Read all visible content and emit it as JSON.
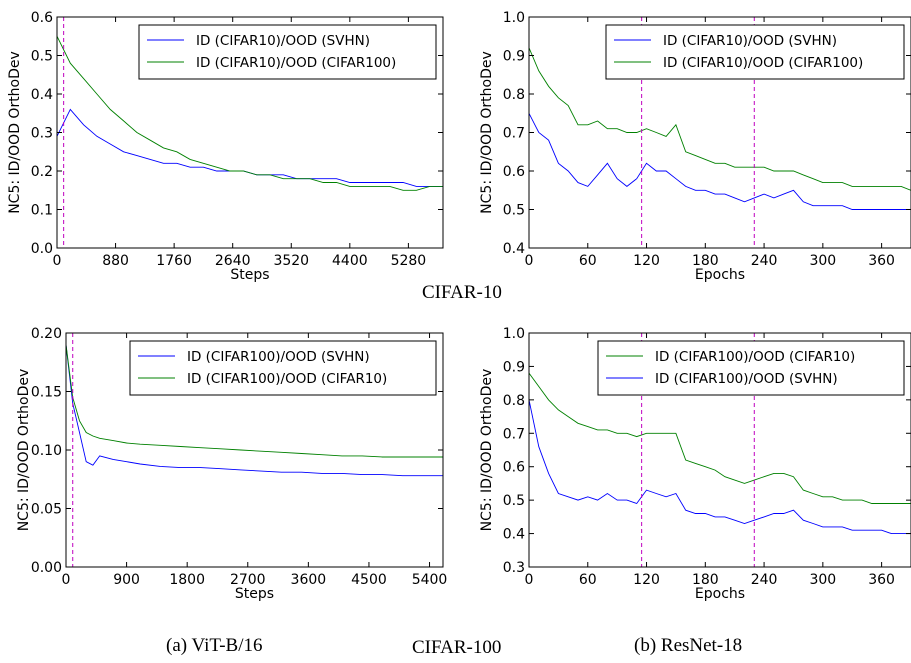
{
  "captions": {
    "row1": "CIFAR-10",
    "row2": "CIFAR-100",
    "a": "(a) ViT-B/16",
    "b": "(b) ResNet-18"
  },
  "chart_data": [
    {
      "type": "line",
      "ylabel": "NC5: ID/OOD OrthoDev",
      "xlabel": "Steps",
      "xlim": [
        0,
        5800
      ],
      "ylim": [
        0.0,
        0.6
      ],
      "xticks": [
        0,
        880,
        1760,
        2640,
        3520,
        4400,
        5280
      ],
      "yticks": [
        0.0,
        0.1,
        0.2,
        0.3,
        0.4,
        0.5,
        0.6
      ],
      "ytick_labels": [
        "0.0",
        "0.1",
        "0.2",
        "0.3",
        "0.4",
        "0.5",
        "0.6"
      ],
      "vlines": [
        100
      ],
      "legend_loc": "top-right",
      "series": [
        {
          "name": "ID (CIFAR10)/OOD (SVHN)",
          "color": "#0000ff",
          "x": [
            0,
            200,
            400,
            600,
            800,
            1000,
            1200,
            1400,
            1600,
            1800,
            2000,
            2200,
            2400,
            2600,
            2800,
            3000,
            3200,
            3400,
            3600,
            3800,
            4000,
            4200,
            4400,
            4600,
            4800,
            5000,
            5200,
            5400,
            5600,
            5800
          ],
          "y": [
            0.29,
            0.36,
            0.32,
            0.29,
            0.27,
            0.25,
            0.24,
            0.23,
            0.22,
            0.22,
            0.21,
            0.21,
            0.2,
            0.2,
            0.2,
            0.19,
            0.19,
            0.19,
            0.18,
            0.18,
            0.18,
            0.18,
            0.17,
            0.17,
            0.17,
            0.17,
            0.17,
            0.16,
            0.16,
            0.16
          ]
        },
        {
          "name": "ID (CIFAR10)/OOD (CIFAR100)",
          "color": "#008000",
          "x": [
            0,
            200,
            400,
            600,
            800,
            1000,
            1200,
            1400,
            1600,
            1800,
            2000,
            2200,
            2400,
            2600,
            2800,
            3000,
            3200,
            3400,
            3600,
            3800,
            4000,
            4200,
            4400,
            4600,
            4800,
            5000,
            5200,
            5400,
            5600,
            5800
          ],
          "y": [
            0.55,
            0.48,
            0.44,
            0.4,
            0.36,
            0.33,
            0.3,
            0.28,
            0.26,
            0.25,
            0.23,
            0.22,
            0.21,
            0.2,
            0.2,
            0.19,
            0.19,
            0.18,
            0.18,
            0.18,
            0.17,
            0.17,
            0.16,
            0.16,
            0.16,
            0.16,
            0.15,
            0.15,
            0.16,
            0.16
          ]
        }
      ]
    },
    {
      "type": "line",
      "ylabel": "NC5: ID/OOD OrthoDev",
      "xlabel": "Epochs",
      "xlim": [
        0,
        390
      ],
      "ylim": [
        0.4,
        1.0
      ],
      "xticks": [
        0,
        60,
        120,
        180,
        240,
        300,
        360
      ],
      "yticks": [
        0.4,
        0.5,
        0.6,
        0.7,
        0.8,
        0.9,
        1.0
      ],
      "ytick_labels": [
        "0.4",
        "0.5",
        "0.6",
        "0.7",
        "0.8",
        "0.9",
        "1.0"
      ],
      "vlines": [
        115,
        230
      ],
      "legend_loc": "top-right",
      "series": [
        {
          "name": "ID (CIFAR10)/OOD (SVHN)",
          "color": "#0000ff",
          "x": [
            0,
            10,
            20,
            30,
            40,
            50,
            60,
            70,
            80,
            90,
            100,
            110,
            120,
            130,
            140,
            150,
            160,
            170,
            180,
            190,
            200,
            210,
            220,
            230,
            240,
            250,
            260,
            270,
            280,
            290,
            300,
            310,
            320,
            330,
            340,
            350,
            360,
            370,
            380,
            390
          ],
          "y": [
            0.75,
            0.7,
            0.68,
            0.62,
            0.6,
            0.57,
            0.56,
            0.59,
            0.62,
            0.58,
            0.56,
            0.58,
            0.62,
            0.6,
            0.6,
            0.58,
            0.56,
            0.55,
            0.55,
            0.54,
            0.54,
            0.53,
            0.52,
            0.53,
            0.54,
            0.53,
            0.54,
            0.55,
            0.52,
            0.51,
            0.51,
            0.51,
            0.51,
            0.5,
            0.5,
            0.5,
            0.5,
            0.5,
            0.5,
            0.5
          ]
        },
        {
          "name": "ID (CIFAR10)/OOD (CIFAR100)",
          "color": "#008000",
          "x": [
            0,
            10,
            20,
            30,
            40,
            50,
            60,
            70,
            80,
            90,
            100,
            110,
            120,
            130,
            140,
            150,
            160,
            170,
            180,
            190,
            200,
            210,
            220,
            230,
            240,
            250,
            260,
            270,
            280,
            290,
            300,
            310,
            320,
            330,
            340,
            350,
            360,
            370,
            380,
            390
          ],
          "y": [
            0.92,
            0.86,
            0.82,
            0.79,
            0.77,
            0.72,
            0.72,
            0.73,
            0.71,
            0.71,
            0.7,
            0.7,
            0.71,
            0.7,
            0.69,
            0.72,
            0.65,
            0.64,
            0.63,
            0.62,
            0.62,
            0.61,
            0.61,
            0.61,
            0.61,
            0.6,
            0.6,
            0.6,
            0.59,
            0.58,
            0.57,
            0.57,
            0.57,
            0.56,
            0.56,
            0.56,
            0.56,
            0.56,
            0.56,
            0.55
          ]
        }
      ]
    },
    {
      "type": "line",
      "ylabel": "NC5: ID/OOD OrthoDev",
      "xlabel": "Steps",
      "xlim": [
        0,
        5600
      ],
      "ylim": [
        0.0,
        0.2
      ],
      "xticks": [
        0,
        900,
        1800,
        2700,
        3600,
        4500,
        5400
      ],
      "yticks": [
        0.0,
        0.05,
        0.1,
        0.15,
        0.2
      ],
      "ytick_labels": [
        "0.00",
        "0.05",
        "0.10",
        "0.15",
        "0.20"
      ],
      "vlines": [
        100
      ],
      "legend_loc": "top-right",
      "series": [
        {
          "name": "ID (CIFAR100)/OOD (SVHN)",
          "color": "#0000ff",
          "x": [
            0,
            100,
            200,
            300,
            400,
            500,
            700,
            900,
            1100,
            1400,
            1700,
            2000,
            2300,
            2600,
            2900,
            3200,
            3500,
            3800,
            4100,
            4400,
            4700,
            5000,
            5300,
            5600
          ],
          "y": [
            0.19,
            0.14,
            0.115,
            0.09,
            0.087,
            0.095,
            0.092,
            0.09,
            0.088,
            0.086,
            0.085,
            0.085,
            0.084,
            0.083,
            0.082,
            0.081,
            0.081,
            0.08,
            0.08,
            0.079,
            0.079,
            0.078,
            0.078,
            0.078
          ]
        },
        {
          "name": "ID (CIFAR100)/OOD (CIFAR10)",
          "color": "#008000",
          "x": [
            0,
            100,
            200,
            300,
            400,
            500,
            700,
            900,
            1100,
            1400,
            1700,
            2000,
            2300,
            2600,
            2900,
            3200,
            3500,
            3800,
            4100,
            4400,
            4700,
            5000,
            5300,
            5600
          ],
          "y": [
            0.19,
            0.145,
            0.125,
            0.115,
            0.112,
            0.11,
            0.108,
            0.106,
            0.105,
            0.104,
            0.103,
            0.102,
            0.101,
            0.1,
            0.099,
            0.098,
            0.097,
            0.096,
            0.095,
            0.095,
            0.094,
            0.094,
            0.094,
            0.094
          ]
        }
      ]
    },
    {
      "type": "line",
      "ylabel": "NC5: ID/OOD OrthoDev",
      "xlabel": "Epochs",
      "xlim": [
        0,
        390
      ],
      "ylim": [
        0.3,
        1.0
      ],
      "xticks": [
        0,
        60,
        120,
        180,
        240,
        300,
        360
      ],
      "yticks": [
        0.3,
        0.4,
        0.5,
        0.6,
        0.7,
        0.8,
        0.9,
        1.0
      ],
      "ytick_labels": [
        "0.3",
        "0.4",
        "0.5",
        "0.6",
        "0.7",
        "0.8",
        "0.9",
        "1.0"
      ],
      "vlines": [
        115,
        230
      ],
      "legend_loc": "top-right",
      "series": [
        {
          "name": "ID (CIFAR100)/OOD (CIFAR10)",
          "color": "#008000",
          "x": [
            0,
            10,
            20,
            30,
            40,
            50,
            60,
            70,
            80,
            90,
            100,
            110,
            120,
            130,
            140,
            150,
            160,
            170,
            180,
            190,
            200,
            210,
            220,
            230,
            240,
            250,
            260,
            270,
            280,
            290,
            300,
            310,
            320,
            330,
            340,
            350,
            360,
            370,
            380,
            390
          ],
          "y": [
            0.88,
            0.84,
            0.8,
            0.77,
            0.75,
            0.73,
            0.72,
            0.71,
            0.71,
            0.7,
            0.7,
            0.69,
            0.7,
            0.7,
            0.7,
            0.7,
            0.62,
            0.61,
            0.6,
            0.59,
            0.57,
            0.56,
            0.55,
            0.56,
            0.57,
            0.58,
            0.58,
            0.57,
            0.53,
            0.52,
            0.51,
            0.51,
            0.5,
            0.5,
            0.5,
            0.49,
            0.49,
            0.49,
            0.49,
            0.49
          ]
        },
        {
          "name": "ID (CIFAR100)/OOD (SVHN)",
          "color": "#0000ff",
          "x": [
            0,
            10,
            20,
            30,
            40,
            50,
            60,
            70,
            80,
            90,
            100,
            110,
            120,
            130,
            140,
            150,
            160,
            170,
            180,
            190,
            200,
            210,
            220,
            230,
            240,
            250,
            260,
            270,
            280,
            290,
            300,
            310,
            320,
            330,
            340,
            350,
            360,
            370,
            380,
            390
          ],
          "y": [
            0.8,
            0.66,
            0.58,
            0.52,
            0.51,
            0.5,
            0.51,
            0.5,
            0.52,
            0.5,
            0.5,
            0.49,
            0.53,
            0.52,
            0.51,
            0.52,
            0.47,
            0.46,
            0.46,
            0.45,
            0.45,
            0.44,
            0.43,
            0.44,
            0.45,
            0.46,
            0.46,
            0.47,
            0.44,
            0.43,
            0.42,
            0.42,
            0.42,
            0.41,
            0.41,
            0.41,
            0.41,
            0.4,
            0.4,
            0.4
          ]
        }
      ]
    }
  ]
}
